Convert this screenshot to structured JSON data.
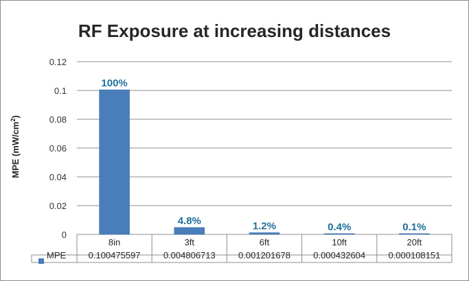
{
  "chart_data": {
    "type": "bar",
    "title": "RF Exposure at increasing distances",
    "ylabel": "MPE (mW/cm",
    "ylabel_sup": "2",
    "ylabel_close": ")",
    "xlabel": "",
    "categories": [
      "8in",
      "3ft",
      "6ft",
      "10ft",
      "20ft"
    ],
    "series": [
      {
        "name": "MPE",
        "values": [
          0.100475597,
          0.004806713,
          0.001201678,
          0.000432604,
          0.000108151
        ],
        "table_values": [
          "0.100475597",
          "0.004806713",
          "0.001201678",
          "0.000432604",
          "0.000108151"
        ],
        "data_labels": [
          "100%",
          "4.8%",
          "1.2%",
          "0.4%",
          "0.1%"
        ],
        "color": "#4a7ebb"
      }
    ],
    "ylim": [
      0,
      0.12
    ],
    "yticks": [
      "0",
      "0.02",
      "0.04",
      "0.06",
      "0.08",
      "0.1",
      "0.12"
    ],
    "ytick_values": [
      0,
      0.02,
      0.04,
      0.06,
      0.08,
      0.1,
      0.12
    ],
    "grid": true,
    "legend": "data-table",
    "data_label_color": "#1f6e9a"
  }
}
